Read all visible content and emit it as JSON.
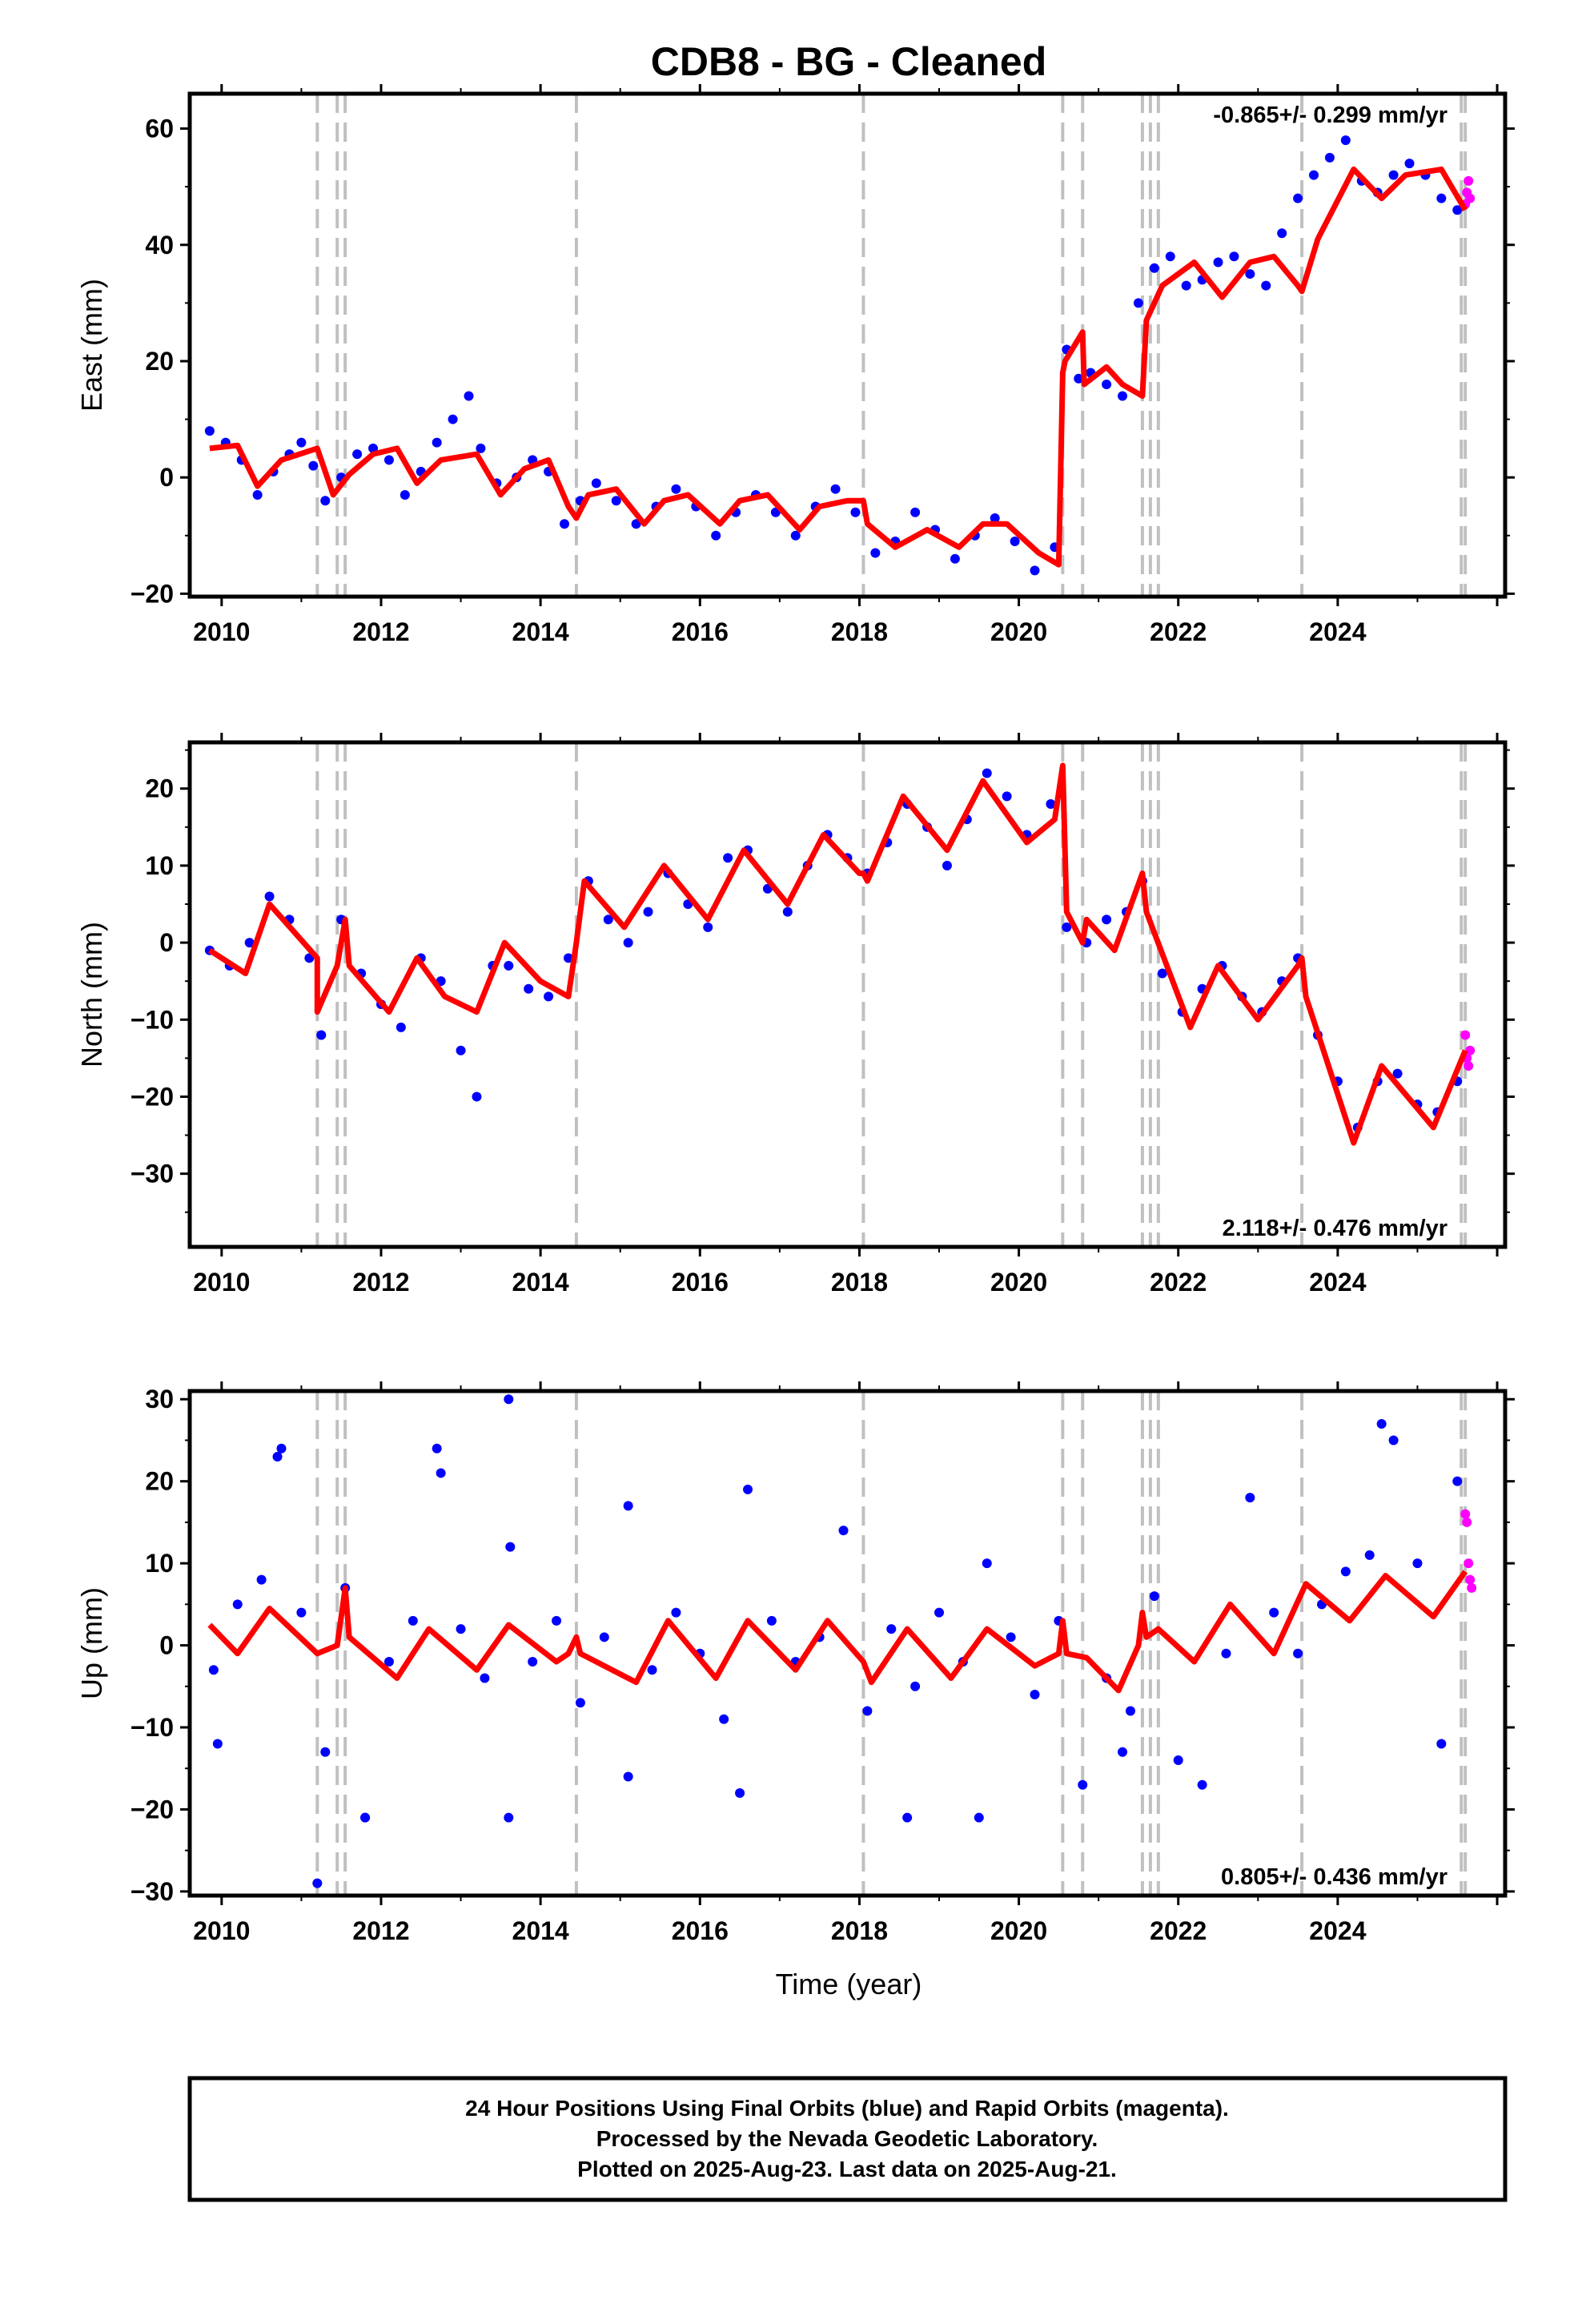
{
  "chart_data": [
    {
      "type": "scatter",
      "title": "CDB8  - BG - Cleaned",
      "xlabel": "",
      "ylabel": "East (mm)",
      "xlim": [
        2009.6,
        2026.1
      ],
      "ylim": [
        -20.5,
        66
      ],
      "yticks": [
        -20,
        0,
        20,
        40,
        60
      ],
      "xticks": [
        2010,
        2012,
        2014,
        2016,
        2018,
        2020,
        2022,
        2024
      ],
      "rate_text": "-0.865+/- 0.299 mm/yr",
      "rate_position": "top-right",
      "grid": false,
      "steps": [
        2011.2,
        2011.45,
        2011.55,
        2014.45,
        2018.05,
        2020.55,
        2020.8,
        2021.55,
        2021.65,
        2021.75,
        2023.55,
        2025.55,
        2025.6
      ],
      "series": [
        {
          "name": "Final Orbits",
          "color": "#0000ff",
          "x": [
            2009.85,
            2010.05,
            2010.25,
            2010.45,
            2010.65,
            2010.85,
            2011.0,
            2011.15,
            2011.3,
            2011.5,
            2011.7,
            2011.9,
            2012.1,
            2012.3,
            2012.5,
            2012.7,
            2012.9,
            2013.1,
            2013.25,
            2013.45,
            2013.7,
            2013.9,
            2014.1,
            2014.3,
            2014.5,
            2014.7,
            2014.95,
            2015.2,
            2015.45,
            2015.7,
            2015.95,
            2016.2,
            2016.45,
            2016.7,
            2016.95,
            2017.2,
            2017.45,
            2017.7,
            2017.95,
            2018.2,
            2018.45,
            2018.7,
            2018.95,
            2019.2,
            2019.45,
            2019.7,
            2019.95,
            2020.2,
            2020.45,
            2020.6,
            2020.75,
            2020.9,
            2021.1,
            2021.3,
            2021.5,
            2021.7,
            2021.9,
            2022.1,
            2022.3,
            2022.5,
            2022.7,
            2022.9,
            2023.1,
            2023.3,
            2023.5,
            2023.7,
            2023.9,
            2024.1,
            2024.3,
            2024.5,
            2024.7,
            2024.9,
            2025.1,
            2025.3,
            2025.5
          ],
          "y": [
            8,
            6,
            3,
            -3,
            1,
            4,
            6,
            2,
            -4,
            0,
            4,
            5,
            3,
            -3,
            1,
            6,
            10,
            14,
            5,
            -1,
            0,
            3,
            1,
            -8,
            -4,
            -1,
            -4,
            -8,
            -5,
            -2,
            -5,
            -10,
            -6,
            -3,
            -6,
            -10,
            -5,
            -2,
            -6,
            -13,
            -11,
            -6,
            -9,
            -14,
            -10,
            -7,
            -11,
            -16,
            -12,
            22,
            17,
            18,
            16,
            14,
            30,
            36,
            38,
            33,
            34,
            37,
            38,
            35,
            33,
            42,
            48,
            52,
            55,
            58,
            51,
            49,
            52,
            54,
            52,
            48,
            46
          ]
        },
        {
          "name": "Rapid Orbits",
          "color": "#ff00ff",
          "x": [
            2025.6,
            2025.62,
            2025.64,
            2025.66
          ],
          "y": [
            47,
            49,
            51,
            48
          ]
        },
        {
          "name": "Model",
          "color": "#ff0000",
          "x": [
            2009.85,
            2010.2,
            2010.45,
            2010.75,
            2011.2,
            2011.2,
            2011.4,
            2011.6,
            2011.9,
            2012.2,
            2012.45,
            2012.75,
            2013.2,
            2013.5,
            2013.8,
            2014.1,
            2014.35,
            2014.45,
            2014.6,
            2014.95,
            2015.3,
            2015.55,
            2015.85,
            2016.25,
            2016.5,
            2016.85,
            2017.25,
            2017.5,
            2017.85,
            2018.05,
            2018.1,
            2018.45,
            2018.85,
            2019.25,
            2019.55,
            2019.85,
            2020.25,
            2020.5,
            2020.55,
            2020.58,
            2020.8,
            2020.82,
            2021.1,
            2021.3,
            2021.55,
            2021.6,
            2021.8,
            2022.2,
            2022.55,
            2022.9,
            2023.2,
            2023.5,
            2023.55,
            2023.75,
            2024.2,
            2024.55,
            2024.85,
            2025.3,
            2025.6
          ],
          "y": [
            5,
            5.5,
            -1.5,
            3,
            5,
            5,
            -3,
            0.5,
            4,
            5,
            -1,
            3,
            4,
            -3,
            1.5,
            3,
            -5,
            -7,
            -3,
            -2,
            -8,
            -4,
            -3,
            -8,
            -4,
            -3,
            -9,
            -5,
            -4,
            -4,
            -8,
            -12,
            -9,
            -12,
            -8,
            -8,
            -13,
            -15,
            18,
            20,
            25,
            16,
            19,
            16,
            14,
            27,
            33,
            37,
            31,
            37,
            38,
            33,
            32,
            41,
            53,
            48,
            52,
            53,
            46
          ]
        }
      ]
    },
    {
      "type": "scatter",
      "xlabel": "",
      "ylabel": "North (mm)",
      "xlim": [
        2009.6,
        2026.1
      ],
      "ylim": [
        -39.5,
        26
      ],
      "yticks": [
        -30,
        -20,
        -10,
        0,
        10,
        20
      ],
      "xticks": [
        2010,
        2012,
        2014,
        2016,
        2018,
        2020,
        2022,
        2024
      ],
      "rate_text": "2.118+/- 0.476 mm/yr",
      "rate_position": "bottom-right",
      "grid": false,
      "steps": [
        2011.2,
        2011.45,
        2011.55,
        2014.45,
        2018.05,
        2020.55,
        2020.8,
        2021.55,
        2021.65,
        2021.75,
        2023.55,
        2025.55,
        2025.6
      ],
      "series": [
        {
          "name": "Final Orbits",
          "color": "#0000ff",
          "x": [
            2009.85,
            2010.1,
            2010.35,
            2010.6,
            2010.85,
            2011.1,
            2011.25,
            2011.5,
            2011.75,
            2012.0,
            2012.25,
            2012.5,
            2012.75,
            2013.0,
            2013.2,
            2013.4,
            2013.6,
            2013.85,
            2014.1,
            2014.35,
            2014.6,
            2014.85,
            2015.1,
            2015.35,
            2015.6,
            2015.85,
            2016.1,
            2016.35,
            2016.6,
            2016.85,
            2017.1,
            2017.35,
            2017.6,
            2017.85,
            2018.1,
            2018.35,
            2018.6,
            2018.85,
            2019.1,
            2019.35,
            2019.6,
            2019.85,
            2020.1,
            2020.4,
            2020.6,
            2020.85,
            2021.1,
            2021.35,
            2021.55,
            2021.8,
            2022.05,
            2022.3,
            2022.55,
            2022.8,
            2023.05,
            2023.3,
            2023.5,
            2023.75,
            2024.0,
            2024.25,
            2024.5,
            2024.75,
            2025.0,
            2025.25,
            2025.5
          ],
          "y": [
            -1,
            -3,
            0,
            6,
            3,
            -2,
            -12,
            3,
            -4,
            -8,
            -11,
            -2,
            -5,
            -14,
            -20,
            -3,
            -3,
            -6,
            -7,
            -2,
            8,
            3,
            0,
            4,
            9,
            5,
            2,
            11,
            12,
            7,
            4,
            10,
            14,
            11,
            9,
            13,
            18,
            15,
            10,
            16,
            22,
            19,
            14,
            18,
            2,
            0,
            3,
            4,
            8,
            -4,
            -9,
            -6,
            -3,
            -7,
            -9,
            -5,
            -2,
            -12,
            -18,
            -24,
            -18,
            -17,
            -21,
            -22,
            -18
          ]
        },
        {
          "name": "Rapid Orbits",
          "color": "#ff00ff",
          "x": [
            2025.6,
            2025.62,
            2025.64,
            2025.66
          ],
          "y": [
            -12,
            -15,
            -16,
            -14
          ]
        },
        {
          "name": "Model",
          "color": "#ff0000",
          "x": [
            2009.85,
            2010.3,
            2010.6,
            2011.2,
            2011.2,
            2011.45,
            2011.55,
            2011.6,
            2012.1,
            2012.45,
            2012.8,
            2013.2,
            2013.55,
            2014.0,
            2014.35,
            2014.45,
            2014.55,
            2015.05,
            2015.55,
            2016.1,
            2016.55,
            2017.1,
            2017.55,
            2018.0,
            2018.05,
            2018.1,
            2018.55,
            2019.1,
            2019.55,
            2020.1,
            2020.45,
            2020.55,
            2020.6,
            2020.8,
            2020.85,
            2021.2,
            2021.55,
            2021.6,
            2022.15,
            2022.5,
            2023.0,
            2023.5,
            2023.55,
            2023.6,
            2024.2,
            2024.55,
            2025.2,
            2025.6
          ],
          "y": [
            -1,
            -4,
            5,
            -2,
            -9,
            -3,
            3,
            -3,
            -9,
            -2,
            -7,
            -9,
            0,
            -5,
            -7,
            0,
            8,
            2,
            10,
            3,
            12,
            5,
            14,
            9,
            9,
            8,
            19,
            12,
            21,
            13,
            16,
            23,
            4,
            0,
            3,
            -1,
            9,
            4,
            -11,
            -3,
            -10,
            -3,
            -2,
            -7,
            -26,
            -16,
            -24,
            -14
          ]
        }
      ]
    },
    {
      "type": "scatter",
      "xlabel": "Time (year)",
      "ylabel": "Up (mm)",
      "xlim": [
        2009.6,
        2026.1
      ],
      "ylim": [
        -30.5,
        31
      ],
      "yticks": [
        -30,
        -20,
        -10,
        0,
        10,
        20,
        30
      ],
      "xticks": [
        2010,
        2012,
        2014,
        2016,
        2018,
        2020,
        2022,
        2024
      ],
      "rate_text": "0.805+/- 0.436 mm/yr",
      "rate_position": "bottom-right",
      "grid": false,
      "steps": [
        2011.2,
        2011.45,
        2011.55,
        2014.45,
        2018.05,
        2020.55,
        2020.8,
        2021.55,
        2021.65,
        2021.75,
        2023.55,
        2025.55,
        2025.6
      ],
      "series": [
        {
          "name": "Final Orbits",
          "color": "#0000ff",
          "x": [
            2009.9,
            2010.2,
            2010.5,
            2010.7,
            2010.75,
            2011.0,
            2011.3,
            2011.55,
            2011.8,
            2012.1,
            2012.4,
            2012.7,
            2012.75,
            2013.0,
            2013.3,
            2013.6,
            2013.62,
            2013.9,
            2014.2,
            2014.5,
            2014.8,
            2015.1,
            2015.4,
            2015.7,
            2016.0,
            2016.3,
            2016.6,
            2016.9,
            2017.2,
            2017.5,
            2017.8,
            2018.1,
            2018.4,
            2018.7,
            2019.0,
            2019.3,
            2019.6,
            2019.9,
            2020.2,
            2020.5,
            2020.8,
            2021.1,
            2021.4,
            2021.7,
            2022.0,
            2022.3,
            2022.6,
            2022.9,
            2023.2,
            2023.5,
            2023.8,
            2024.1,
            2024.4,
            2024.55,
            2024.7,
            2025.0,
            2025.3,
            2025.5,
            2009.95,
            2011.2,
            2011.8,
            2013.6,
            2015.1,
            2016.5,
            2018.6,
            2019.5,
            2021.3
          ],
          "y": [
            -3,
            5,
            8,
            23,
            24,
            4,
            -13,
            7,
            -21,
            -2,
            3,
            24,
            21,
            2,
            -4,
            30,
            12,
            -2,
            3,
            -7,
            1,
            17,
            -3,
            4,
            -1,
            -9,
            19,
            3,
            -2,
            1,
            14,
            -8,
            2,
            -5,
            4,
            -2,
            10,
            1,
            -6,
            3,
            -17,
            -4,
            -8,
            6,
            -14,
            -17,
            -1,
            18,
            4,
            -1,
            5,
            9,
            11,
            27,
            25,
            10,
            -12,
            20,
            -12,
            -29,
            -21,
            -21,
            -16,
            -18,
            -21,
            -21,
            -13
          ]
        },
        {
          "name": "Rapid Orbits",
          "color": "#ff00ff",
          "x": [
            2025.6,
            2025.62,
            2025.64,
            2025.66,
            2025.68
          ],
          "y": [
            16,
            15,
            10,
            8,
            7
          ]
        },
        {
          "name": "Model",
          "color": "#ff0000",
          "x": [
            2009.85,
            2010.2,
            2010.6,
            2011.2,
            2011.45,
            2011.55,
            2011.6,
            2012.2,
            2012.6,
            2013.2,
            2013.6,
            2014.2,
            2014.35,
            2014.45,
            2014.5,
            2015.2,
            2015.6,
            2016.2,
            2016.6,
            2017.2,
            2017.6,
            2018.05,
            2018.15,
            2018.6,
            2019.15,
            2019.6,
            2020.2,
            2020.5,
            2020.55,
            2020.6,
            2020.85,
            2021.25,
            2021.5,
            2021.55,
            2021.6,
            2021.75,
            2022.2,
            2022.65,
            2023.2,
            2023.6,
            2024.15,
            2024.6,
            2025.2,
            2025.6
          ],
          "y": [
            2.5,
            -1,
            4.5,
            -1,
            0,
            7,
            1,
            -4,
            2,
            -3,
            2.5,
            -2,
            -1,
            1,
            -1,
            -4.5,
            3,
            -4,
            3,
            -3,
            3,
            -2,
            -4.5,
            2,
            -4,
            2,
            -2.5,
            -1,
            3,
            -1,
            -1.5,
            -5.5,
            0,
            4,
            1,
            2,
            -2,
            5,
            -1,
            7.5,
            3,
            8.5,
            3.5,
            9
          ]
        }
      ]
    }
  ],
  "footer": {
    "line1": "24 Hour Positions Using Final Orbits (blue) and Rapid Orbits (magenta).",
    "line2": "Processed by the Nevada Geodetic Laboratory.",
    "line3": "Plotted on 2025-Aug-23. Last data on 2025-Aug-21."
  },
  "colors": {
    "final": "#0000ff",
    "rapid": "#ff00ff",
    "model": "#ff0000",
    "step_line": "#c0c0c0",
    "frame": "#000000"
  }
}
